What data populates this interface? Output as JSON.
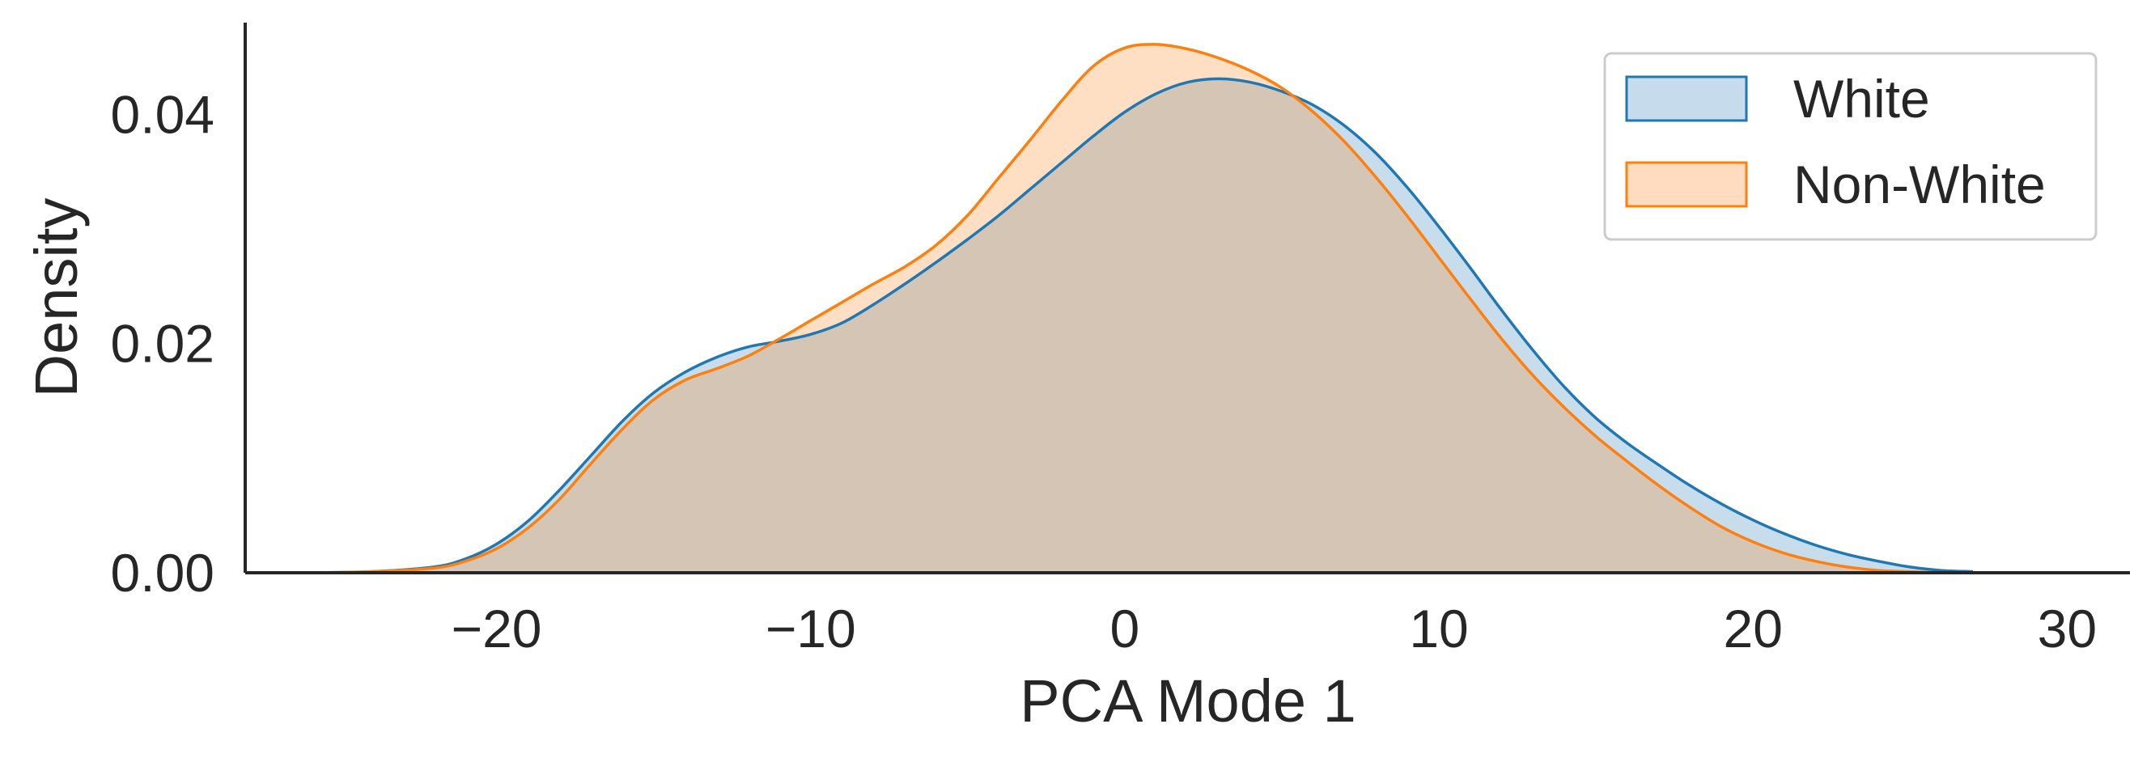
{
  "chart_data": {
    "type": "area",
    "xlabel": "PCA Mode 1",
    "ylabel": "Density",
    "xlim": [
      -28,
      32
    ],
    "ylim": [
      0,
      0.048
    ],
    "xticks": [
      -20,
      -10,
      0,
      10,
      20,
      30
    ],
    "xtick_labels": [
      "−20",
      "−10",
      "0",
      "10",
      "20",
      "30"
    ],
    "yticks": [
      0,
      0.02,
      0.04
    ],
    "ytick_labels": [
      "0.00",
      "0.02",
      "0.04"
    ],
    "grid": false,
    "legend_position": "top-right",
    "x": [
      -26,
      -24,
      -22,
      -21,
      -20,
      -19,
      -18,
      -17,
      -16,
      -15,
      -14,
      -13,
      -12,
      -11,
      -10,
      -9,
      -8,
      -7,
      -6,
      -5,
      -4,
      -3,
      -2,
      -1,
      0,
      1,
      2,
      3,
      4,
      5,
      6,
      7,
      8,
      9,
      10,
      11,
      12,
      13,
      14,
      15,
      16,
      17,
      18,
      19,
      20,
      21,
      22,
      23,
      24,
      25,
      26,
      27
    ],
    "series": [
      {
        "name": "White",
        "color": "#1f77b4",
        "fill": "#c6dcec",
        "values": [
          0.0,
          0.0001,
          0.0005,
          0.0012,
          0.0025,
          0.0045,
          0.0072,
          0.0102,
          0.0132,
          0.0157,
          0.0175,
          0.0188,
          0.0197,
          0.0202,
          0.0208,
          0.0218,
          0.0234,
          0.0252,
          0.0271,
          0.0291,
          0.0312,
          0.0335,
          0.0358,
          0.0381,
          0.0402,
          0.0418,
          0.0428,
          0.0431,
          0.0428,
          0.042,
          0.0408,
          0.039,
          0.0366,
          0.0336,
          0.0302,
          0.0266,
          0.0229,
          0.0194,
          0.0162,
          0.0135,
          0.0113,
          0.0094,
          0.0076,
          0.006,
          0.0046,
          0.0034,
          0.0024,
          0.0016,
          0.001,
          0.0005,
          0.0002,
          0.0001
        ]
      },
      {
        "name": "Non-White",
        "color": "#ff7f0e",
        "fill": "#ffdcbf",
        "values": [
          0.0,
          0.0001,
          0.0004,
          0.001,
          0.0021,
          0.0039,
          0.0064,
          0.0095,
          0.0125,
          0.0151,
          0.0168,
          0.0178,
          0.0189,
          0.0204,
          0.022,
          0.0236,
          0.0252,
          0.0267,
          0.0286,
          0.0312,
          0.0345,
          0.0378,
          0.0412,
          0.0442,
          0.0458,
          0.0461,
          0.0457,
          0.0449,
          0.0438,
          0.0423,
          0.0402,
          0.0376,
          0.0345,
          0.0311,
          0.0275,
          0.0239,
          0.0204,
          0.0172,
          0.0144,
          0.0119,
          0.0097,
          0.0076,
          0.0057,
          0.004,
          0.0027,
          0.0017,
          0.001,
          0.0005,
          0.0002,
          0.0001,
          0.0,
          0.0
        ]
      }
    ]
  }
}
